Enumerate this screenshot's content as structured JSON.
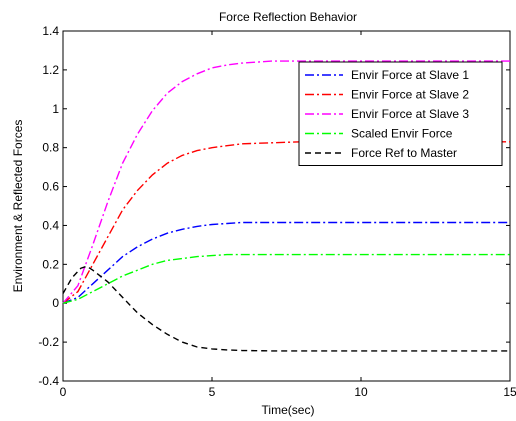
{
  "chart_data": {
    "type": "line",
    "title": "Force Reflection Behavior",
    "xlabel": "Time(sec)",
    "ylabel": "Environment & Reflected Forces",
    "xlim": [
      0,
      15
    ],
    "ylim": [
      -0.4,
      1.4
    ],
    "xticks": [
      0,
      5,
      10,
      15
    ],
    "xtick_labels": [
      "0",
      "5",
      "10",
      "15"
    ],
    "yticks": [
      -0.4,
      -0.2,
      0,
      0.2,
      0.4,
      0.6,
      0.8,
      1,
      1.2,
      1.4
    ],
    "ytick_labels": [
      "-0.4",
      "-0.2",
      "0",
      "0.2",
      "0.4",
      "0.6",
      "0.8",
      "1",
      "1.2",
      "1.4"
    ],
    "grid": false,
    "legend_position": "top-right",
    "series": [
      {
        "name": "Envir Force at Slave 1",
        "color": "#0000ff",
        "dash": "dashdot",
        "x": [
          0,
          0.5,
          1,
          1.5,
          2,
          2.5,
          3,
          3.5,
          4,
          4.5,
          5,
          5.5,
          6,
          7,
          8,
          9,
          10,
          11,
          12,
          13,
          14,
          15
        ],
        "y": [
          0,
          0.03,
          0.1,
          0.17,
          0.24,
          0.29,
          0.33,
          0.36,
          0.38,
          0.395,
          0.405,
          0.41,
          0.415,
          0.415,
          0.415,
          0.415,
          0.415,
          0.415,
          0.415,
          0.415,
          0.415,
          0.415
        ]
      },
      {
        "name": "Envir Force at Slave 2",
        "color": "#ff0000",
        "dash": "dashdot",
        "x": [
          0,
          0.5,
          1,
          1.5,
          2,
          2.5,
          3,
          3.5,
          4,
          4.5,
          5,
          5.5,
          6,
          7,
          8,
          9,
          10,
          11,
          12,
          13,
          14,
          15
        ],
        "y": [
          0,
          0.06,
          0.2,
          0.34,
          0.48,
          0.58,
          0.66,
          0.72,
          0.76,
          0.785,
          0.8,
          0.81,
          0.82,
          0.825,
          0.83,
          0.83,
          0.83,
          0.83,
          0.83,
          0.83,
          0.83,
          0.83
        ]
      },
      {
        "name": "Envir Force at Slave 3",
        "color": "#ff00ff",
        "dash": "dashdot",
        "x": [
          0,
          0.5,
          1,
          1.5,
          2,
          2.5,
          3,
          3.5,
          4,
          4.5,
          5,
          5.5,
          6,
          7,
          8,
          9,
          10,
          11,
          12,
          13,
          14,
          15
        ],
        "y": [
          0,
          0.09,
          0.3,
          0.52,
          0.72,
          0.87,
          0.99,
          1.08,
          1.14,
          1.18,
          1.21,
          1.225,
          1.235,
          1.245,
          1.245,
          1.245,
          1.245,
          1.245,
          1.245,
          1.245,
          1.245,
          1.245
        ]
      },
      {
        "name": "Scaled Envir Force",
        "color": "#00ff00",
        "dash": "dashdot",
        "x": [
          0,
          0.5,
          1,
          1.5,
          2,
          2.5,
          3,
          3.5,
          4,
          4.5,
          5,
          5.5,
          6,
          7,
          8,
          9,
          10,
          11,
          12,
          13,
          14,
          15
        ],
        "y": [
          0,
          0.02,
          0.06,
          0.1,
          0.14,
          0.17,
          0.2,
          0.22,
          0.23,
          0.24,
          0.245,
          0.25,
          0.25,
          0.25,
          0.25,
          0.25,
          0.25,
          0.25,
          0.25,
          0.25,
          0.25,
          0.25
        ]
      },
      {
        "name": "Force Ref to Master",
        "color": "#000000",
        "dash": "dashed",
        "x": [
          0,
          0.3,
          0.6,
          0.8,
          1,
          1.5,
          2,
          2.5,
          3,
          3.5,
          4,
          4.5,
          5,
          5.5,
          6,
          7,
          8,
          9,
          10,
          11,
          12,
          13,
          14,
          15
        ],
        "y": [
          0.05,
          0.13,
          0.18,
          0.19,
          0.17,
          0.11,
          0.03,
          -0.05,
          -0.11,
          -0.16,
          -0.2,
          -0.225,
          -0.235,
          -0.24,
          -0.243,
          -0.245,
          -0.245,
          -0.245,
          -0.245,
          -0.245,
          -0.245,
          -0.245,
          -0.245,
          -0.245
        ]
      }
    ]
  }
}
